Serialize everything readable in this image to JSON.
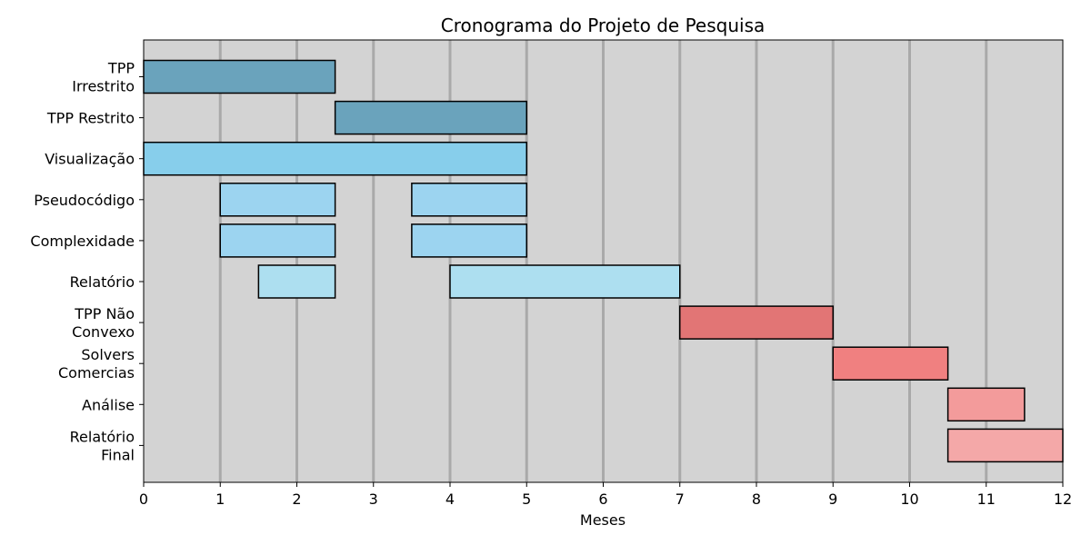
{
  "chart_data": {
    "type": "bar",
    "orientation": "horizontal",
    "title": "Cronograma do Projeto de Pesquisa",
    "xlabel": "Meses",
    "ylabel": "",
    "xlim": [
      0,
      12
    ],
    "xticks": [
      0,
      1,
      2,
      3,
      4,
      5,
      6,
      7,
      8,
      9,
      10,
      11,
      12
    ],
    "grid": "vertical",
    "background_color": "#d3d3d3",
    "grid_color": "#a9a9a9",
    "tasks": [
      {
        "label": [
          "TPP",
          "Irrestrito"
        ],
        "color": "#6aa3bc",
        "segments": [
          [
            0,
            2.5
          ]
        ]
      },
      {
        "label": [
          "TPP Restrito"
        ],
        "color": "#6aa3bc",
        "segments": [
          [
            2.5,
            5
          ]
        ]
      },
      {
        "label": [
          "Visualização"
        ],
        "color": "#87ceeb",
        "segments": [
          [
            0,
            5
          ]
        ]
      },
      {
        "label": [
          "Pseudocódigo"
        ],
        "color": "#9cd4f0",
        "segments": [
          [
            1,
            2.5
          ],
          [
            3.5,
            5
          ]
        ]
      },
      {
        "label": [
          "Complexidade"
        ],
        "color": "#9cd4f0",
        "segments": [
          [
            1,
            2.5
          ],
          [
            3.5,
            5
          ]
        ]
      },
      {
        "label": [
          "Relatório"
        ],
        "color": "#addff0",
        "segments": [
          [
            1.5,
            2.5
          ],
          [
            4,
            7
          ]
        ]
      },
      {
        "label": [
          "TPP Não",
          "Convexo"
        ],
        "color": "#e27575",
        "segments": [
          [
            7,
            9
          ]
        ]
      },
      {
        "label": [
          "Solvers",
          "Comercias"
        ],
        "color": "#f08080",
        "segments": [
          [
            9,
            10.5
          ]
        ]
      },
      {
        "label": [
          "Análise"
        ],
        "color": "#f39b9b",
        "segments": [
          [
            10.5,
            11.5
          ]
        ]
      },
      {
        "label": [
          "Relatório",
          "Final"
        ],
        "color": "#f4a8a8",
        "segments": [
          [
            10.5,
            12
          ]
        ]
      }
    ]
  }
}
